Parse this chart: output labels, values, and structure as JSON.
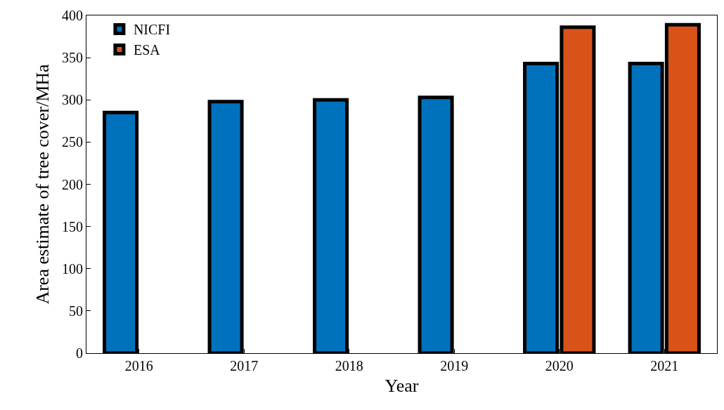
{
  "chart_data": {
    "type": "bar",
    "xlabel": "Year",
    "ylabel": "Area estimate of tree cover/MHa",
    "categories": [
      "2016",
      "2017",
      "2018",
      "2019",
      "2020",
      "2021"
    ],
    "series": [
      {
        "name": "NICFI",
        "color": "#0072bd",
        "values": [
          285,
          298,
          300,
          303,
          343,
          343
        ]
      },
      {
        "name": "ESA",
        "color": "#d95319",
        "values": [
          null,
          null,
          null,
          null,
          386,
          389
        ]
      }
    ],
    "ylim": [
      0,
      400
    ],
    "yticks": [
      0,
      50,
      100,
      150,
      200,
      250,
      300,
      350,
      400
    ],
    "grid": false,
    "legend": "top left"
  }
}
